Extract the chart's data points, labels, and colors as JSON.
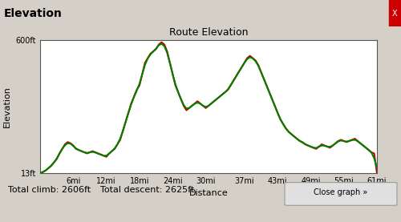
{
  "title": "Route Elevation",
  "xlabel": "Distance",
  "ylabel": "Elevation",
  "header_label": "Elevation",
  "y_min": 13,
  "y_max": 600,
  "x_min": 0,
  "x_max": 61,
  "x_ticks": [
    6,
    12,
    18,
    24,
    30,
    37,
    43,
    49,
    55,
    61
  ],
  "x_tick_labels": [
    "6mi",
    "12mi",
    "18mi",
    "24mi",
    "30mi",
    "37mi",
    "43mi",
    "49mi",
    "55mi",
    "61mi"
  ],
  "y_ticks": [
    13,
    600
  ],
  "y_tick_labels": [
    "13ft",
    "600ft"
  ],
  "total_climb": "Total climb: 2606ft",
  "total_descent": "Total descent: 2625ft",
  "close_button": "Close graph »",
  "line_color_green": "#008000",
  "line_color_red": "#cc0000",
  "bg_color": "#ffffff",
  "outer_bg": "#d4d0c8",
  "header_bg": "#4a90d9",
  "line_width": 1.5,
  "x_data": [
    0,
    0.5,
    1,
    1.5,
    2,
    2.5,
    3,
    3.5,
    4,
    4.5,
    5,
    5.5,
    6,
    6.5,
    7,
    7.5,
    8,
    8.5,
    9,
    9.5,
    10,
    10.5,
    11,
    11.5,
    12,
    12.5,
    13,
    13.5,
    14,
    14.5,
    15,
    15.5,
    16,
    16.5,
    17,
    17.5,
    18,
    18.5,
    19,
    19.5,
    20,
    20.5,
    21,
    21.5,
    22,
    22.5,
    23,
    23.5,
    24,
    24.5,
    25,
    25.5,
    26,
    26.5,
    27,
    27.5,
    28,
    28.5,
    29,
    29.5,
    30,
    30.5,
    31,
    31.5,
    32,
    32.5,
    33,
    33.5,
    34,
    34.5,
    35,
    35.5,
    36,
    36.5,
    37,
    37.5,
    38,
    38.5,
    39,
    39.5,
    40,
    40.5,
    41,
    41.5,
    42,
    42.5,
    43,
    43.5,
    44,
    44.5,
    45,
    45.5,
    46,
    46.5,
    47,
    47.5,
    48,
    48.5,
    49,
    49.5,
    50,
    50.5,
    51,
    51.5,
    52,
    52.5,
    53,
    53.5,
    54,
    54.5,
    55,
    55.5,
    56,
    56.5,
    57,
    57.5,
    58,
    58.5,
    59,
    59.5,
    60,
    60.5,
    61
  ],
  "y_data": [
    13,
    18,
    25,
    35,
    45,
    60,
    75,
    100,
    120,
    140,
    150,
    145,
    135,
    120,
    115,
    110,
    105,
    100,
    105,
    110,
    105,
    100,
    95,
    90,
    85,
    100,
    110,
    120,
    140,
    160,
    200,
    240,
    280,
    320,
    350,
    380,
    400,
    450,
    500,
    520,
    540,
    550,
    560,
    580,
    590,
    580,
    550,
    500,
    450,
    400,
    370,
    340,
    310,
    290,
    300,
    310,
    320,
    330,
    320,
    310,
    300,
    310,
    320,
    330,
    340,
    350,
    360,
    370,
    380,
    400,
    420,
    440,
    460,
    480,
    500,
    520,
    530,
    520,
    510,
    490,
    460,
    430,
    400,
    370,
    340,
    310,
    280,
    250,
    230,
    210,
    195,
    185,
    175,
    165,
    155,
    150,
    140,
    135,
    130,
    125,
    120,
    130,
    140,
    135,
    130,
    125,
    135,
    145,
    155,
    160,
    155,
    150,
    155,
    160,
    165,
    155,
    145,
    135,
    125,
    115,
    105,
    100,
    13
  ]
}
